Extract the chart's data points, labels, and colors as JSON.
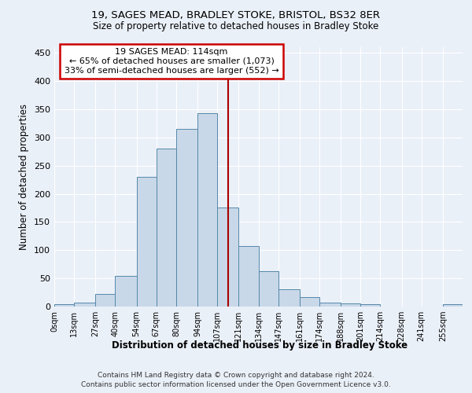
{
  "title1": "19, SAGES MEAD, BRADLEY STOKE, BRISTOL, BS32 8ER",
  "title2": "Size of property relative to detached houses in Bradley Stoke",
  "xlabel": "Distribution of detached houses by size in Bradley Stoke",
  "ylabel": "Number of detached properties",
  "bin_edges": [
    0,
    13,
    27,
    40,
    54,
    67,
    80,
    94,
    107,
    121,
    134,
    147,
    161,
    174,
    188,
    201,
    214,
    228,
    241,
    255,
    268
  ],
  "bar_heights": [
    4,
    7,
    22,
    55,
    230,
    280,
    315,
    343,
    175,
    108,
    63,
    30,
    17,
    7,
    5,
    4,
    0,
    0,
    0,
    4
  ],
  "bar_color": "#c8d8e8",
  "bar_edge_color": "#5588aa",
  "vline_x": 114,
  "vline_color": "#aa0000",
  "annotation_line1": "19 SAGES MEAD: 114sqm",
  "annotation_line2": "← 65% of detached houses are smaller (1,073)",
  "annotation_line3": "33% of semi-detached houses are larger (552) →",
  "annotation_box_color": "#ffffff",
  "annotation_box_edge_color": "#cc0000",
  "ylim": [
    0,
    460
  ],
  "yticks": [
    0,
    50,
    100,
    150,
    200,
    250,
    300,
    350,
    400,
    450
  ],
  "bg_color": "#eaf0f8",
  "grid_color": "#ffffff",
  "footer1": "Contains HM Land Registry data © Crown copyright and database right 2024.",
  "footer2": "Contains public sector information licensed under the Open Government Licence v3.0."
}
